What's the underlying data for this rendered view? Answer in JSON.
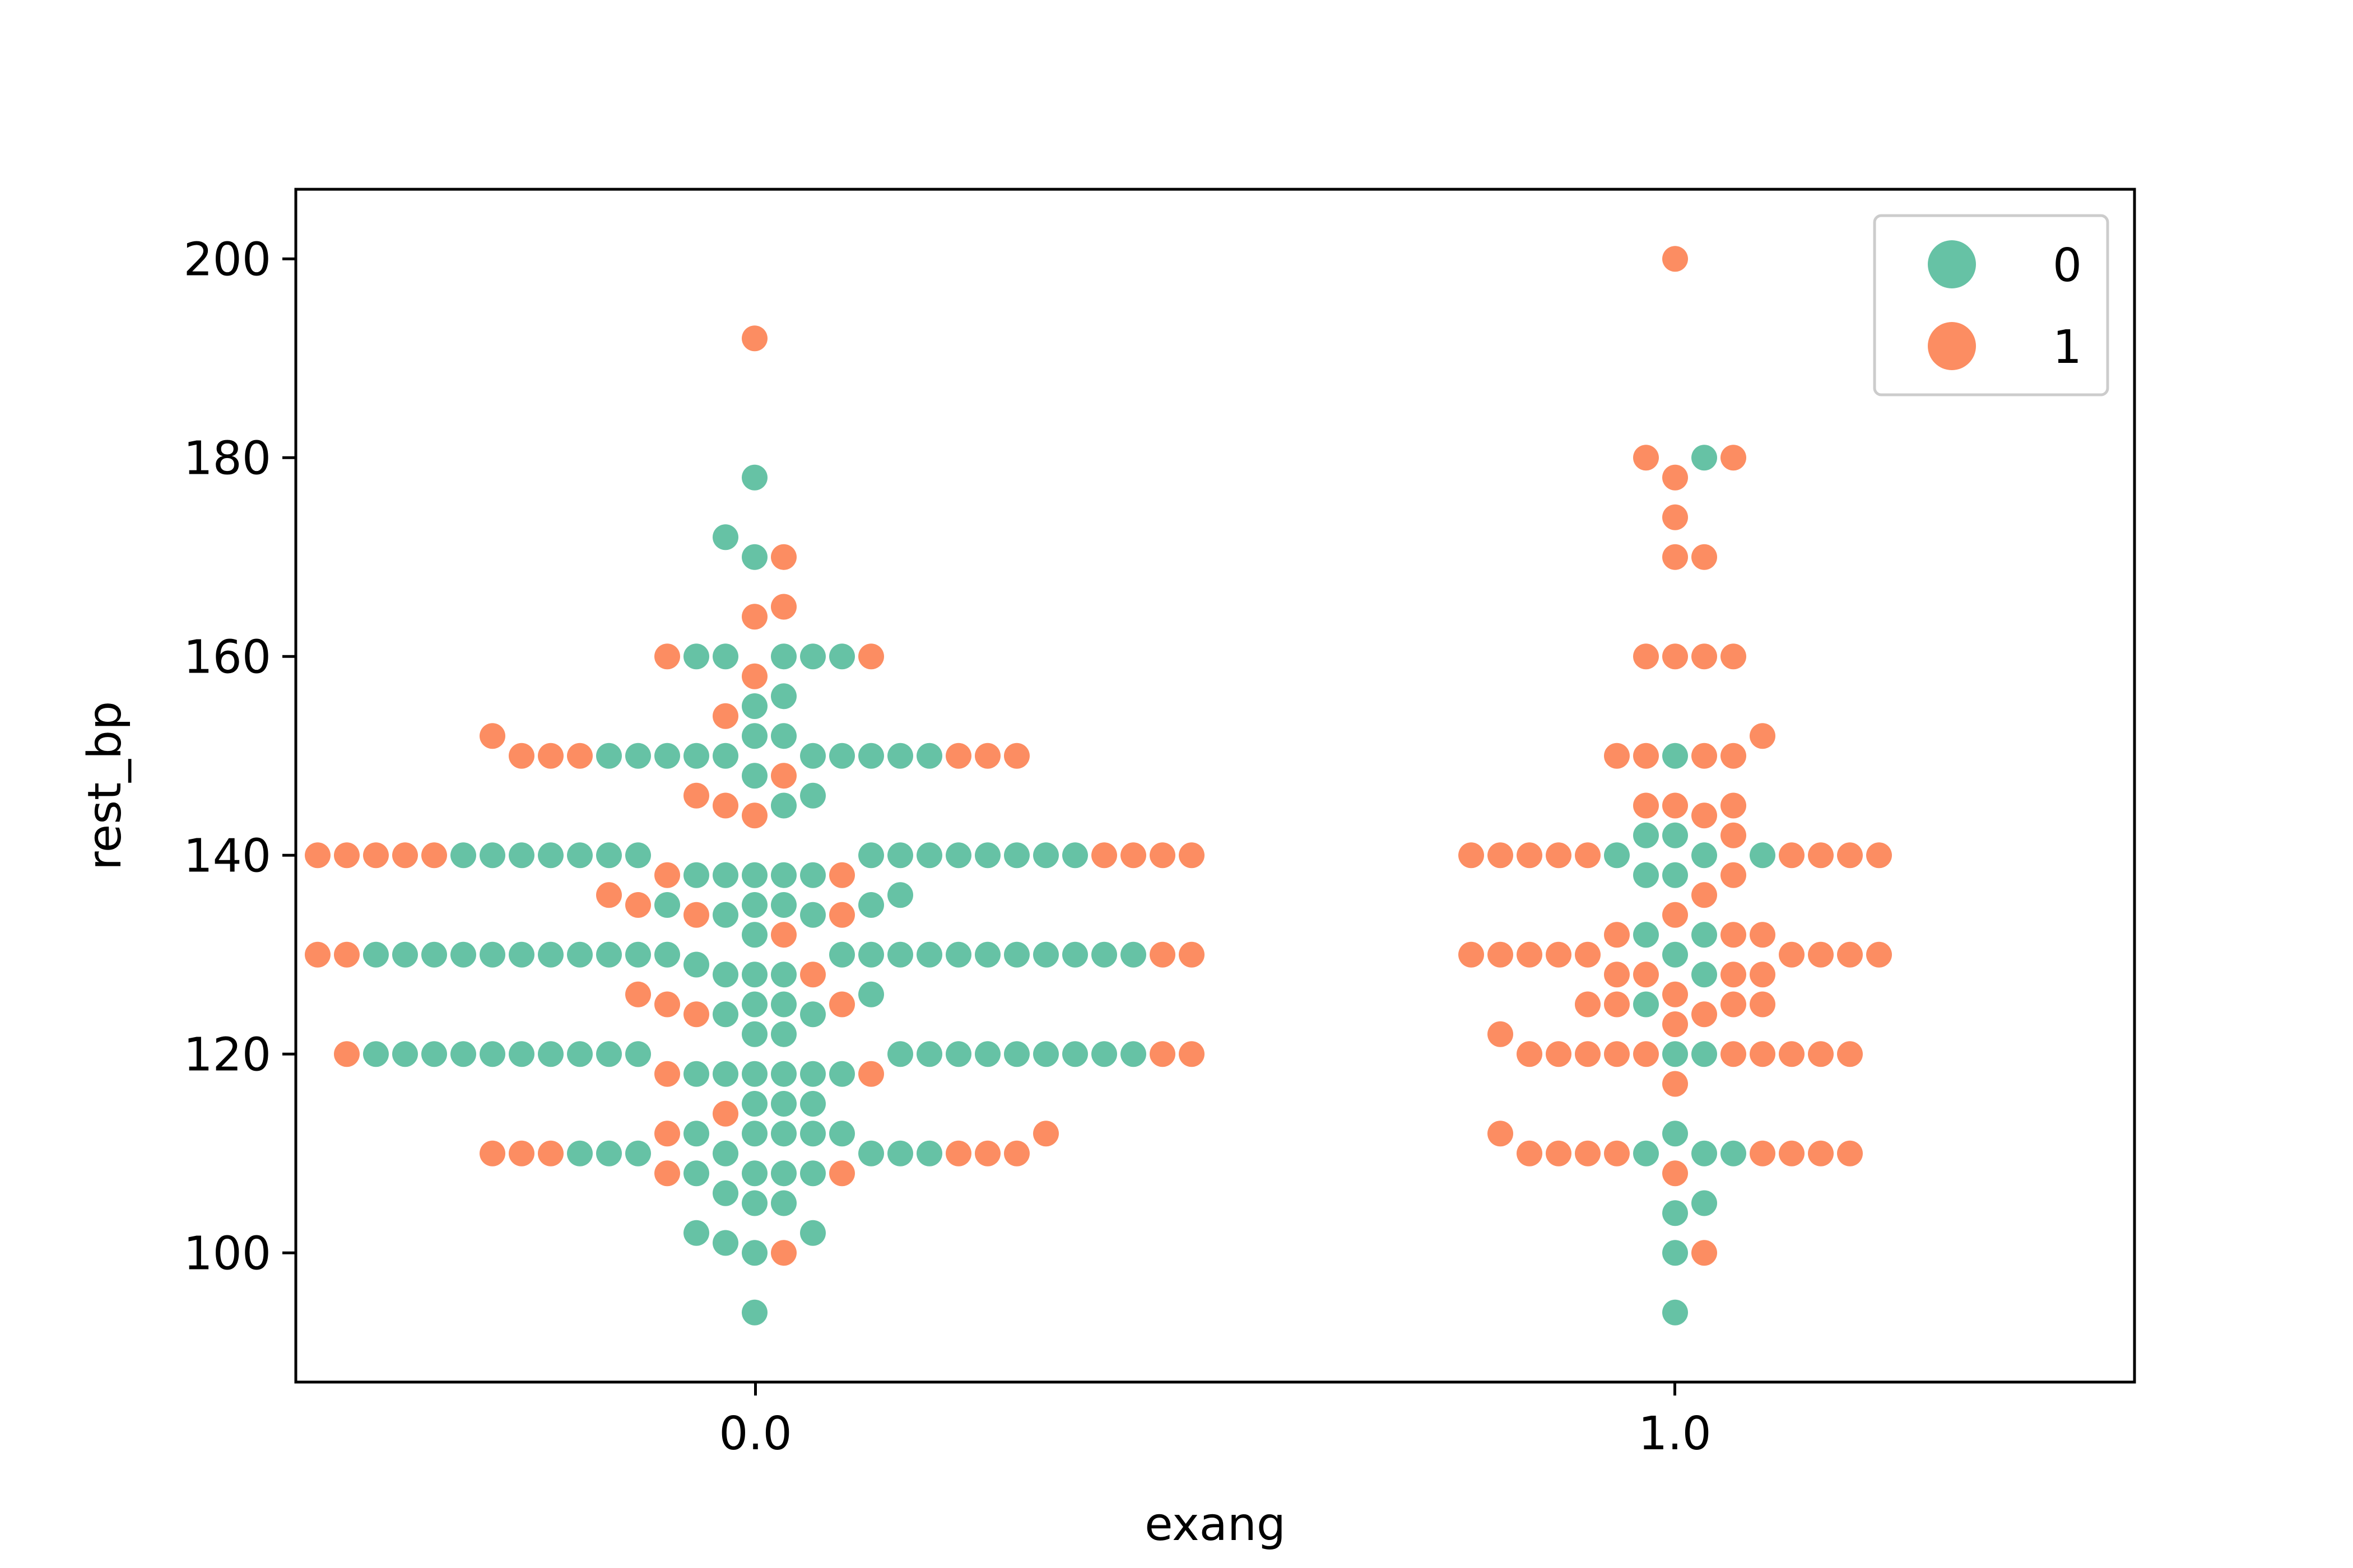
{
  "chart_data": {
    "type": "scatter",
    "subtype": "swarm",
    "xlabel": "exang",
    "ylabel": "rest_bp",
    "categories": [
      "0.0",
      "1.0"
    ],
    "ylim": [
      87,
      207
    ],
    "yticks": [
      100,
      120,
      140,
      160,
      180,
      200
    ],
    "grid": false,
    "legend": {
      "position": "top-right",
      "title": ""
    },
    "colors": {
      "0": "#66c2a5",
      "1": "#fc8d62"
    },
    "series": [
      {
        "name": "0",
        "points": [
          [
            0,
            178
          ],
          [
            0,
            172
          ],
          [
            0,
            170
          ],
          [
            0,
            160
          ],
          [
            0,
            160
          ],
          [
            0,
            160
          ],
          [
            0,
            160
          ],
          [
            0,
            160
          ],
          [
            0,
            156
          ],
          [
            0,
            155
          ],
          [
            0,
            152
          ],
          [
            0,
            152
          ],
          [
            0,
            150
          ],
          [
            0,
            150
          ],
          [
            0,
            150
          ],
          [
            0,
            150
          ],
          [
            0,
            150
          ],
          [
            0,
            150
          ],
          [
            0,
            150
          ],
          [
            0,
            150
          ],
          [
            0,
            150
          ],
          [
            0,
            150
          ],
          [
            0,
            148
          ],
          [
            0,
            146
          ],
          [
            0,
            145
          ],
          [
            0,
            140
          ],
          [
            0,
            140
          ],
          [
            0,
            140
          ],
          [
            0,
            140
          ],
          [
            0,
            140
          ],
          [
            0,
            140
          ],
          [
            0,
            140
          ],
          [
            0,
            140
          ],
          [
            0,
            140
          ],
          [
            0,
            140
          ],
          [
            0,
            140
          ],
          [
            0,
            140
          ],
          [
            0,
            140
          ],
          [
            0,
            140
          ],
          [
            0,
            140
          ],
          [
            0,
            138
          ],
          [
            0,
            138
          ],
          [
            0,
            138
          ],
          [
            0,
            138
          ],
          [
            0,
            138
          ],
          [
            0,
            136
          ],
          [
            0,
            135
          ],
          [
            0,
            135
          ],
          [
            0,
            135
          ],
          [
            0,
            135
          ],
          [
            0,
            134
          ],
          [
            0,
            134
          ],
          [
            0,
            132
          ],
          [
            0,
            130
          ],
          [
            0,
            130
          ],
          [
            0,
            130
          ],
          [
            0,
            130
          ],
          [
            0,
            130
          ],
          [
            0,
            130
          ],
          [
            0,
            130
          ],
          [
            0,
            130
          ],
          [
            0,
            130
          ],
          [
            0,
            130
          ],
          [
            0,
            130
          ],
          [
            0,
            130
          ],
          [
            0,
            130
          ],
          [
            0,
            130
          ],
          [
            0,
            130
          ],
          [
            0,
            130
          ],
          [
            0,
            130
          ],
          [
            0,
            130
          ],
          [
            0,
            130
          ],
          [
            0,
            130
          ],
          [
            0,
            130
          ],
          [
            0,
            130
          ],
          [
            0,
            129
          ],
          [
            0,
            128
          ],
          [
            0,
            128
          ],
          [
            0,
            128
          ],
          [
            0,
            126
          ],
          [
            0,
            125
          ],
          [
            0,
            125
          ],
          [
            0,
            124
          ],
          [
            0,
            124
          ],
          [
            0,
            122
          ],
          [
            0,
            122
          ],
          [
            0,
            120
          ],
          [
            0,
            120
          ],
          [
            0,
            120
          ],
          [
            0,
            120
          ],
          [
            0,
            120
          ],
          [
            0,
            120
          ],
          [
            0,
            120
          ],
          [
            0,
            120
          ],
          [
            0,
            120
          ],
          [
            0,
            120
          ],
          [
            0,
            120
          ],
          [
            0,
            120
          ],
          [
            0,
            120
          ],
          [
            0,
            120
          ],
          [
            0,
            120
          ],
          [
            0,
            120
          ],
          [
            0,
            120
          ],
          [
            0,
            120
          ],
          [
            0,
            120
          ],
          [
            0,
            118
          ],
          [
            0,
            118
          ],
          [
            0,
            118
          ],
          [
            0,
            118
          ],
          [
            0,
            118
          ],
          [
            0,
            118
          ],
          [
            0,
            115
          ],
          [
            0,
            115
          ],
          [
            0,
            115
          ],
          [
            0,
            112
          ],
          [
            0,
            112
          ],
          [
            0,
            112
          ],
          [
            0,
            112
          ],
          [
            0,
            112
          ],
          [
            0,
            110
          ],
          [
            0,
            110
          ],
          [
            0,
            110
          ],
          [
            0,
            110
          ],
          [
            0,
            110
          ],
          [
            0,
            110
          ],
          [
            0,
            110
          ],
          [
            0,
            108
          ],
          [
            0,
            108
          ],
          [
            0,
            108
          ],
          [
            0,
            108
          ],
          [
            0,
            106
          ],
          [
            0,
            105
          ],
          [
            0,
            105
          ],
          [
            0,
            102
          ],
          [
            0,
            102
          ],
          [
            0,
            101
          ],
          [
            0,
            100
          ],
          [
            0,
            94
          ],
          [
            1,
            180
          ],
          [
            1,
            150
          ],
          [
            1,
            142
          ],
          [
            1,
            142
          ],
          [
            1,
            140
          ],
          [
            1,
            140
          ],
          [
            1,
            140
          ],
          [
            1,
            138
          ],
          [
            1,
            138
          ],
          [
            1,
            132
          ],
          [
            1,
            132
          ],
          [
            1,
            130
          ],
          [
            1,
            128
          ],
          [
            1,
            125
          ],
          [
            1,
            120
          ],
          [
            1,
            120
          ],
          [
            1,
            112
          ],
          [
            1,
            110
          ],
          [
            1,
            110
          ],
          [
            1,
            110
          ],
          [
            1,
            105
          ],
          [
            1,
            104
          ],
          [
            1,
            100
          ],
          [
            1,
            94
          ]
        ]
      },
      {
        "name": "1",
        "points": [
          [
            0,
            192
          ],
          [
            0,
            170
          ],
          [
            0,
            165
          ],
          [
            0,
            164
          ],
          [
            0,
            160
          ],
          [
            0,
            160
          ],
          [
            0,
            158
          ],
          [
            0,
            154
          ],
          [
            0,
            152
          ],
          [
            0,
            150
          ],
          [
            0,
            150
          ],
          [
            0,
            150
          ],
          [
            0,
            150
          ],
          [
            0,
            150
          ],
          [
            0,
            150
          ],
          [
            0,
            148
          ],
          [
            0,
            146
          ],
          [
            0,
            145
          ],
          [
            0,
            144
          ],
          [
            0,
            140
          ],
          [
            0,
            140
          ],
          [
            0,
            140
          ],
          [
            0,
            140
          ],
          [
            0,
            140
          ],
          [
            0,
            140
          ],
          [
            0,
            140
          ],
          [
            0,
            140
          ],
          [
            0,
            140
          ],
          [
            0,
            138
          ],
          [
            0,
            138
          ],
          [
            0,
            136
          ],
          [
            0,
            135
          ],
          [
            0,
            134
          ],
          [
            0,
            134
          ],
          [
            0,
            132
          ],
          [
            0,
            130
          ],
          [
            0,
            130
          ],
          [
            0,
            130
          ],
          [
            0,
            130
          ],
          [
            0,
            128
          ],
          [
            0,
            126
          ],
          [
            0,
            125
          ],
          [
            0,
            125
          ],
          [
            0,
            124
          ],
          [
            0,
            120
          ],
          [
            0,
            120
          ],
          [
            0,
            120
          ],
          [
            0,
            118
          ],
          [
            0,
            118
          ],
          [
            0,
            114
          ],
          [
            0,
            112
          ],
          [
            0,
            112
          ],
          [
            0,
            110
          ],
          [
            0,
            110
          ],
          [
            0,
            110
          ],
          [
            0,
            110
          ],
          [
            0,
            110
          ],
          [
            0,
            110
          ],
          [
            0,
            108
          ],
          [
            0,
            108
          ],
          [
            0,
            100
          ],
          [
            1,
            200
          ],
          [
            1,
            180
          ],
          [
            1,
            180
          ],
          [
            1,
            178
          ],
          [
            1,
            174
          ],
          [
            1,
            170
          ],
          [
            1,
            170
          ],
          [
            1,
            160
          ],
          [
            1,
            160
          ],
          [
            1,
            160
          ],
          [
            1,
            160
          ],
          [
            1,
            152
          ],
          [
            1,
            150
          ],
          [
            1,
            150
          ],
          [
            1,
            150
          ],
          [
            1,
            150
          ],
          [
            1,
            145
          ],
          [
            1,
            145
          ],
          [
            1,
            145
          ],
          [
            1,
            144
          ],
          [
            1,
            142
          ],
          [
            1,
            140
          ],
          [
            1,
            140
          ],
          [
            1,
            140
          ],
          [
            1,
            140
          ],
          [
            1,
            140
          ],
          [
            1,
            140
          ],
          [
            1,
            140
          ],
          [
            1,
            140
          ],
          [
            1,
            140
          ],
          [
            1,
            138
          ],
          [
            1,
            136
          ],
          [
            1,
            134
          ],
          [
            1,
            132
          ],
          [
            1,
            132
          ],
          [
            1,
            132
          ],
          [
            1,
            130
          ],
          [
            1,
            130
          ],
          [
            1,
            130
          ],
          [
            1,
            130
          ],
          [
            1,
            130
          ],
          [
            1,
            130
          ],
          [
            1,
            130
          ],
          [
            1,
            130
          ],
          [
            1,
            130
          ],
          [
            1,
            128
          ],
          [
            1,
            128
          ],
          [
            1,
            128
          ],
          [
            1,
            128
          ],
          [
            1,
            126
          ],
          [
            1,
            125
          ],
          [
            1,
            125
          ],
          [
            1,
            125
          ],
          [
            1,
            125
          ],
          [
            1,
            124
          ],
          [
            1,
            123
          ],
          [
            1,
            122
          ],
          [
            1,
            120
          ],
          [
            1,
            120
          ],
          [
            1,
            120
          ],
          [
            1,
            120
          ],
          [
            1,
            120
          ],
          [
            1,
            120
          ],
          [
            1,
            120
          ],
          [
            1,
            120
          ],
          [
            1,
            120
          ],
          [
            1,
            120
          ],
          [
            1,
            117
          ],
          [
            1,
            112
          ],
          [
            1,
            110
          ],
          [
            1,
            110
          ],
          [
            1,
            110
          ],
          [
            1,
            110
          ],
          [
            1,
            110
          ],
          [
            1,
            110
          ],
          [
            1,
            110
          ],
          [
            1,
            110
          ],
          [
            1,
            108
          ],
          [
            1,
            100
          ]
        ]
      }
    ]
  }
}
